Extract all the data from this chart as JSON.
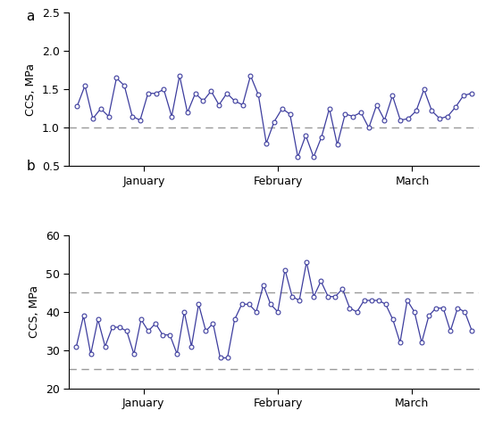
{
  "plot_a": {
    "ylabel": "CCS, MPa",
    "ylim": [
      0.5,
      2.5
    ],
    "yticks": [
      0.5,
      1.0,
      1.5,
      2.0,
      2.5
    ],
    "dashed_line": 1.0,
    "values": [
      1.28,
      1.55,
      1.12,
      1.25,
      1.15,
      1.65,
      1.55,
      1.15,
      1.1,
      1.45,
      1.45,
      1.5,
      1.15,
      1.68,
      1.2,
      1.45,
      1.35,
      1.48,
      1.3,
      1.45,
      1.35,
      1.3,
      1.68,
      1.43,
      0.8,
      1.08,
      1.25,
      1.18,
      0.62,
      0.9,
      0.62,
      0.88,
      1.25,
      0.78,
      1.18,
      1.15,
      1.2,
      1.0,
      1.3,
      1.1,
      1.42,
      1.1,
      1.12,
      1.22,
      1.5,
      1.22,
      1.12,
      1.15,
      1.27,
      1.42,
      1.45
    ]
  },
  "plot_b": {
    "ylabel": "CCS, MPa",
    "ylim": [
      20,
      60
    ],
    "yticks": [
      20,
      30,
      40,
      50,
      60
    ],
    "dashed_lines": [
      25,
      45
    ],
    "values": [
      31,
      39,
      29,
      38,
      31,
      36,
      36,
      35,
      29,
      38,
      35,
      37,
      34,
      34,
      29,
      40,
      31,
      42,
      35,
      37,
      28,
      28,
      38,
      42,
      42,
      40,
      47,
      42,
      40,
      51,
      44,
      43,
      53,
      44,
      48,
      44,
      44,
      46,
      41,
      40,
      43,
      43,
      43,
      42,
      38,
      32,
      43,
      40,
      32,
      39,
      41,
      41,
      35,
      41,
      40,
      35
    ]
  },
  "line_color": "#3d3d9e",
  "marker": "o",
  "marker_size": 3.5,
  "marker_facecolor": "white",
  "dashed_color": "#999999",
  "xlabel_ticks": [
    "January",
    "February",
    "March"
  ],
  "label_a": "a",
  "label_b": "b",
  "fig_width": 5.53,
  "fig_height": 4.79,
  "dpi": 100,
  "tick_fontsize": 9,
  "label_fontsize": 9,
  "ab_fontsize": 11
}
